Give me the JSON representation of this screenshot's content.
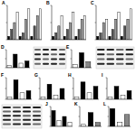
{
  "chart_data": [
    {
      "type": "bar",
      "title": "A",
      "categories": [
        null,
        null,
        null,
        null,
        null,
        null,
        null,
        null,
        null,
        null,
        null,
        null
      ],
      "values": [
        1,
        3,
        5,
        8,
        1,
        2,
        6,
        9,
        1,
        4,
        7,
        9
      ],
      "colors": [
        "#000000",
        "#555555",
        "#999999",
        "#ffffff",
        "#000000",
        "#555555",
        "#999999",
        "#ffffff",
        "#000000",
        "#555555",
        "#999999",
        "#ffffff"
      ],
      "ylim": [
        0,
        10
      ],
      "yticks": [
        0,
        5,
        10
      ],
      "tick_labels": false
    },
    {
      "type": "bar",
      "title": "B",
      "categories": [
        null,
        null,
        null,
        null,
        null,
        null,
        null,
        null,
        null,
        null,
        null,
        null
      ],
      "values": [
        1,
        2,
        4,
        7,
        1,
        3,
        5,
        8,
        1,
        3,
        6,
        7
      ],
      "colors": [
        "#000000",
        "#555555",
        "#999999",
        "#ffffff",
        "#000000",
        "#555555",
        "#999999",
        "#ffffff",
        "#000000",
        "#555555",
        "#999999",
        "#ffffff"
      ],
      "ylim": [
        0,
        10
      ],
      "yticks": [
        0,
        5,
        10
      ],
      "tick_labels": false
    },
    {
      "type": "bar",
      "title": "C",
      "categories": [
        null,
        null,
        null,
        null,
        null,
        null,
        null,
        null,
        null,
        null,
        null,
        null
      ],
      "values": [
        1,
        2,
        5,
        6,
        1,
        3,
        6,
        8,
        1,
        4,
        6,
        9
      ],
      "colors": [
        "#000000",
        "#555555",
        "#999999",
        "#ffffff",
        "#000000",
        "#555555",
        "#999999",
        "#ffffff",
        "#000000",
        "#555555",
        "#999999",
        "#ffffff"
      ],
      "ylim": [
        0,
        10
      ],
      "yticks": [
        0,
        5,
        10
      ],
      "tick_labels": false
    },
    {
      "type": "bar",
      "title": "D",
      "categories": [
        null,
        null,
        null,
        null
      ],
      "values": [
        1,
        6,
        2,
        3
      ],
      "colors": [
        "#ffffff",
        "#000000",
        "#ffffff",
        "#000000"
      ],
      "ylim": [
        0,
        8
      ],
      "yticks": [
        0,
        4,
        8
      ],
      "tick_labels": false
    },
    {
      "type": "bar",
      "title": "E",
      "categories": [
        null,
        null,
        null
      ],
      "values": [
        1,
        5,
        2
      ],
      "colors": [
        "#ffffff",
        "#000000",
        "#888888"
      ],
      "ylim": [
        0,
        6
      ],
      "yticks": [
        0,
        3,
        6
      ],
      "tick_labels": false
    },
    {
      "type": "bar",
      "title": "F",
      "categories": [
        null,
        null,
        null,
        null
      ],
      "values": [
        1,
        9,
        3,
        4
      ],
      "colors": [
        "#ffffff",
        "#000000",
        "#ffffff",
        "#000000"
      ],
      "ylim": [
        0,
        10
      ],
      "yticks": [
        0,
        5,
        10
      ],
      "tick_labels": false
    },
    {
      "type": "bar",
      "title": "G",
      "categories": [
        null,
        null,
        null,
        null
      ],
      "values": [
        1,
        7,
        2,
        5
      ],
      "colors": [
        "#ffffff",
        "#000000",
        "#ffffff",
        "#000000"
      ],
      "ylim": [
        0,
        10
      ],
      "yticks": [
        0,
        5,
        10
      ],
      "tick_labels": false
    },
    {
      "type": "bar",
      "title": "H",
      "categories": [
        null,
        null,
        null,
        null
      ],
      "values": [
        1,
        8,
        3,
        6
      ],
      "colors": [
        "#ffffff",
        "#000000",
        "#ffffff",
        "#000000"
      ],
      "ylim": [
        0,
        10
      ],
      "yticks": [
        0,
        5,
        10
      ],
      "tick_labels": false
    },
    {
      "type": "bar",
      "title": "I",
      "categories": [
        null,
        null,
        null,
        null
      ],
      "values": [
        1,
        6,
        2,
        4
      ],
      "colors": [
        "#ffffff",
        "#000000",
        "#ffffff",
        "#000000"
      ],
      "ylim": [
        0,
        10
      ],
      "yticks": [
        0,
        5,
        10
      ],
      "tick_labels": false
    },
    {
      "type": "bar",
      "title": "J",
      "categories": [
        null,
        null,
        null,
        null
      ],
      "values": [
        8,
        3,
        5,
        2
      ],
      "colors": [
        "#000000",
        "#ffffff",
        "#000000",
        "#ffffff"
      ],
      "ylim": [
        0,
        10
      ],
      "yticks": [
        0,
        5,
        10
      ],
      "tick_labels": false
    },
    {
      "type": "bar",
      "title": "K",
      "categories": [
        null,
        null,
        null
      ],
      "values": [
        1,
        7,
        2
      ],
      "colors": [
        "#ffffff",
        "#000000",
        "#888888"
      ],
      "ylim": [
        0,
        10
      ],
      "yticks": [
        0,
        5,
        10
      ],
      "tick_labels": false
    },
    {
      "type": "bar",
      "title": "L",
      "categories": [
        null,
        null,
        null
      ],
      "values": [
        9,
        2,
        6
      ],
      "colors": [
        "#000000",
        "#ffffff",
        "#888888"
      ],
      "ylim": [
        0,
        10
      ],
      "yticks": [
        0,
        5,
        10
      ],
      "tick_labels": false
    }
  ]
}
